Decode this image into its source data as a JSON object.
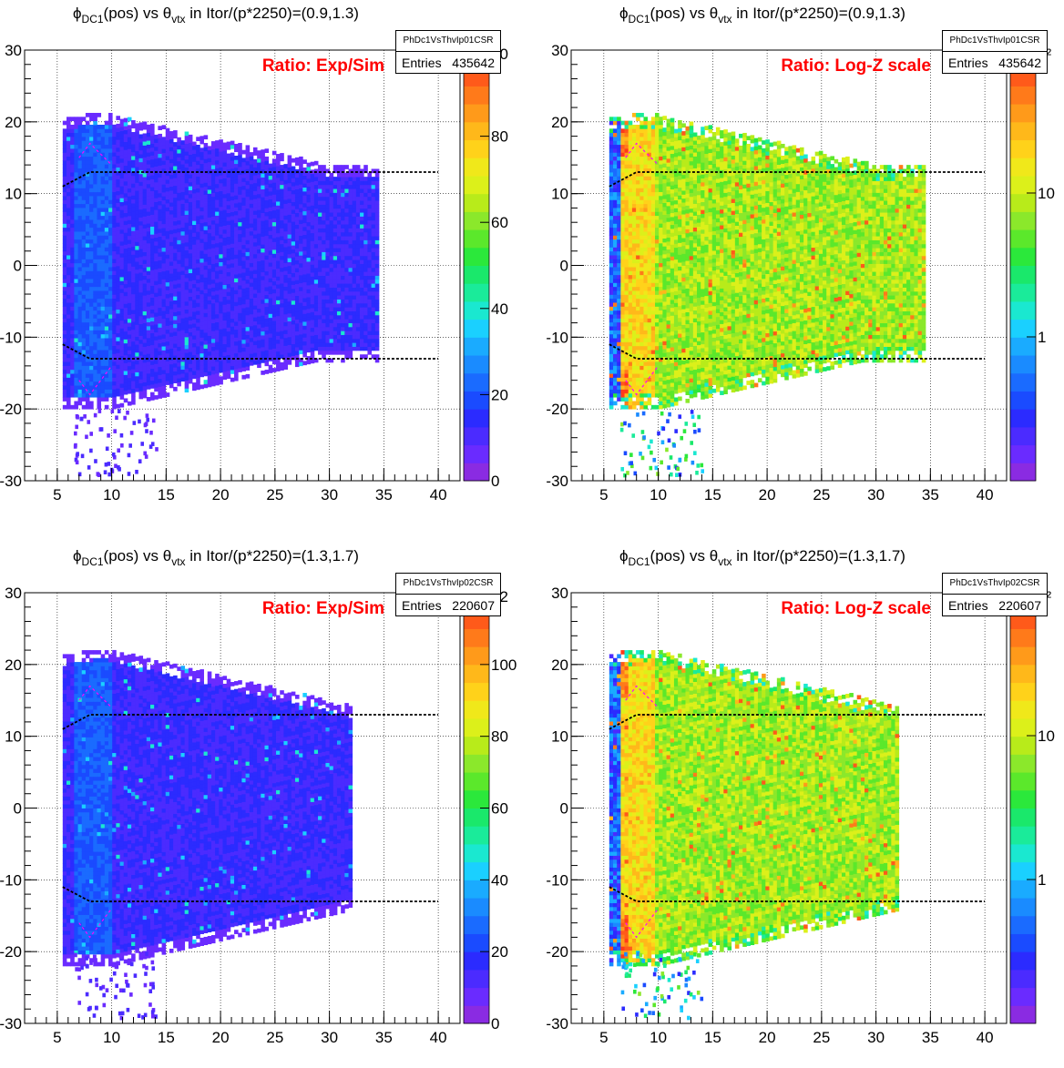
{
  "pads": [
    {
      "title_pre": "ϕ",
      "title_sub1": "DC1",
      "title_mid": "(pos) vs θ",
      "title_sub2": "vtx",
      "title_post": " in Itor/(p*2250)=(0.9,1.3)",
      "annotation": "Ratio: Exp/Sim",
      "stat_name": "PhDc1VsThvIp01CSR",
      "entries_label": "Entries",
      "entries_value": "435642",
      "palette_labels": [
        "0",
        "20",
        "40",
        "60",
        "80"
      ],
      "palette_top_label": "00",
      "color_mode": "linear-low"
    },
    {
      "title_pre": "ϕ",
      "title_sub1": "DC1",
      "title_mid": "(pos) vs θ",
      "title_sub2": "vtx",
      "title_post": " in Itor/(p*2250)=(0.9,1.3)",
      "annotation": "Ratio: Log-Z scale",
      "stat_name": "PhDc1VsThvIp01CSR",
      "entries_label": "Entries",
      "entries_value": "435642",
      "palette_labels": [
        "1",
        "10"
      ],
      "palette_top_label": "0²",
      "color_mode": "log"
    },
    {
      "title_pre": "ϕ",
      "title_sub1": "DC1",
      "title_mid": "(pos) vs θ",
      "title_sub2": "vtx",
      "title_post": " in Itor/(p*2250)=(1.3,1.7)",
      "annotation": "Ratio: Exp/Sim",
      "stat_name": "PhDc1VsThvIp02CSR",
      "entries_label": "Entries",
      "entries_value": "220607",
      "palette_labels": [
        "0",
        "20",
        "40",
        "60",
        "80",
        "100"
      ],
      "palette_top_label": "12",
      "color_mode": "linear-low"
    },
    {
      "title_pre": "ϕ",
      "title_sub1": "DC1",
      "title_mid": "(pos) vs θ",
      "title_sub2": "vtx",
      "title_post": " in Itor/(p*2250)=(1.3,1.7)",
      "annotation": "Ratio: Log-Z scale",
      "stat_name": "PhDc1VsThvIp02CSR",
      "entries_label": "Entries",
      "entries_value": "220607",
      "palette_labels": [
        "1",
        "10"
      ],
      "palette_top_label": "0²",
      "color_mode": "log"
    }
  ],
  "chart_data": [
    {
      "type": "heatmap",
      "title": "ϕDC1(pos) vs θvtx in Itor/(p*2250)=(0.9,1.3)",
      "xlim": [
        2,
        42
      ],
      "ylim": [
        -30,
        30
      ],
      "xticks": [
        5,
        10,
        15,
        20,
        25,
        30,
        35,
        40
      ],
      "yticks": [
        -30,
        -20,
        -10,
        0,
        10,
        20,
        30
      ],
      "zlim": [
        0,
        100
      ],
      "z_scale": "linear",
      "annotation": "Ratio: Exp/Sim",
      "entries": 435642,
      "region": {
        "theta": [
          5.5,
          34.5
        ],
        "phi": [
          -20,
          21
        ]
      },
      "cut_lines": [
        [
          [
            5.5,
            11
          ],
          [
            8,
            13
          ],
          [
            40,
            13
          ]
        ],
        [
          [
            5.5,
            -11
          ],
          [
            8,
            -13
          ],
          [
            40,
            -13
          ]
        ]
      ],
      "grid": true
    },
    {
      "type": "heatmap",
      "title": "ϕDC1(pos) vs θvtx in Itor/(p*2250)=(0.9,1.3)",
      "xlim": [
        2,
        42
      ],
      "ylim": [
        -30,
        30
      ],
      "xticks": [
        5,
        10,
        15,
        20,
        25,
        30,
        35,
        40
      ],
      "yticks": [
        -30,
        -20,
        -10,
        0,
        10,
        20,
        30
      ],
      "z_scale": "log",
      "annotation": "Ratio: Log-Z scale",
      "entries": 435642,
      "region": {
        "theta": [
          5.5,
          34.5
        ],
        "phi": [
          -20,
          21
        ]
      },
      "cut_lines": [
        [
          [
            5.5,
            11
          ],
          [
            8,
            13
          ],
          [
            40,
            13
          ]
        ],
        [
          [
            5.5,
            -11
          ],
          [
            8,
            -13
          ],
          [
            40,
            -13
          ]
        ]
      ],
      "grid": true
    },
    {
      "type": "heatmap",
      "title": "ϕDC1(pos) vs θvtx in Itor/(p*2250)=(1.3,1.7)",
      "xlim": [
        2,
        42
      ],
      "ylim": [
        -30,
        30
      ],
      "xticks": [
        5,
        10,
        15,
        20,
        25,
        30,
        35,
        40
      ],
      "yticks": [
        -30,
        -20,
        -10,
        0,
        10,
        20,
        30
      ],
      "zlim": [
        0,
        120
      ],
      "z_scale": "linear",
      "annotation": "Ratio: Exp/Sim",
      "entries": 220607,
      "region": {
        "theta": [
          5.5,
          32
        ],
        "phi": [
          -22,
          22
        ]
      },
      "cut_lines": [
        [
          [
            5.5,
            11
          ],
          [
            8,
            13
          ],
          [
            40,
            13
          ]
        ],
        [
          [
            5.5,
            -11
          ],
          [
            8,
            -13
          ],
          [
            40,
            -13
          ]
        ]
      ],
      "grid": true
    },
    {
      "type": "heatmap",
      "title": "ϕDC1(pos) vs θvtx in Itor/(p*2250)=(1.3,1.7)",
      "xlim": [
        2,
        42
      ],
      "ylim": [
        -30,
        30
      ],
      "xticks": [
        5,
        10,
        15,
        20,
        25,
        30,
        35,
        40
      ],
      "yticks": [
        -30,
        -20,
        -10,
        0,
        10,
        20,
        30
      ],
      "z_scale": "log",
      "annotation": "Ratio: Log-Z scale",
      "entries": 220607,
      "region": {
        "theta": [
          5.5,
          32
        ],
        "phi": [
          -22,
          22
        ]
      },
      "cut_lines": [
        [
          [
            5.5,
            11
          ],
          [
            8,
            13
          ],
          [
            40,
            13
          ]
        ],
        [
          [
            5.5,
            -11
          ],
          [
            8,
            -13
          ],
          [
            40,
            -13
          ]
        ]
      ],
      "grid": true
    }
  ]
}
